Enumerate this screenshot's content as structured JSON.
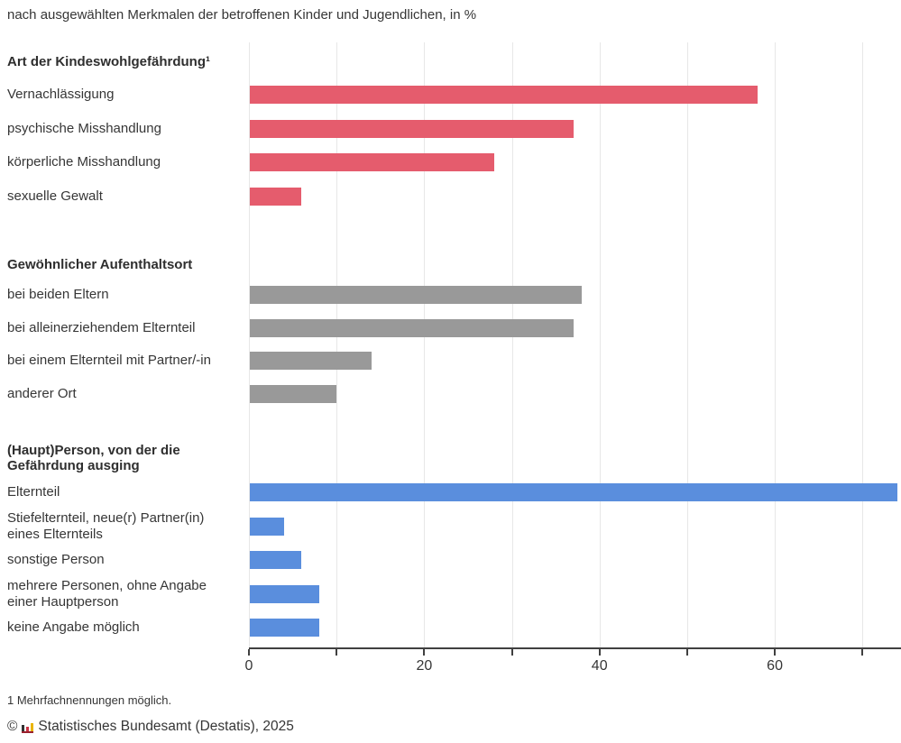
{
  "page": {
    "subtitle": "nach ausgewählten Merkmalen der betroffenen Kinder und Jugendlichen, in %",
    "footnote": "1 Mehrfachnennungen möglich.",
    "copyright_symbol": "©",
    "copyright_text": "Statistisches Bundesamt (Destatis), 2025",
    "logo": {
      "name": "destatis-bars-logo",
      "bar_colors": [
        "#333333",
        "#cc3344",
        "#e9b400"
      ],
      "bar_heights": [
        7,
        5,
        9
      ],
      "base_color": "#99202e"
    }
  },
  "chart_data": {
    "type": "bar",
    "orientation": "horizontal",
    "value_unit": "%",
    "title": "",
    "subtitle": "nach ausgewählten Merkmalen der betroffenen Kinder und Jugendlichen, in %",
    "axis": {
      "min": 0,
      "max": 74.4,
      "tick_step": 10,
      "last_tick": 70,
      "labeled_ticks": [
        0,
        20,
        40,
        60
      ],
      "gridlines": true,
      "gridline_color": "#e7e7e7"
    },
    "sections": [
      {
        "header_lines": [
          "Art der Kindeswohlgefährdung¹"
        ],
        "color": "#e55c6d",
        "rows": [
          {
            "label_lines": [
              "Vernachlässigung"
            ],
            "value": 58
          },
          {
            "label_lines": [
              "psychische Misshandlung"
            ],
            "value": 37
          },
          {
            "label_lines": [
              "körperliche Misshandlung"
            ],
            "value": 28
          },
          {
            "label_lines": [
              "sexuelle Gewalt"
            ],
            "value": 6
          }
        ]
      },
      {
        "header_lines": [
          "Gewöhnlicher Aufenthaltsort"
        ],
        "color": "#999999",
        "rows": [
          {
            "label_lines": [
              "bei beiden Eltern"
            ],
            "value": 38
          },
          {
            "label_lines": [
              "bei alleinerziehendem Elternteil"
            ],
            "value": 37
          },
          {
            "label_lines": [
              "bei einem Elternteil mit Partner/-in"
            ],
            "value": 14
          },
          {
            "label_lines": [
              "anderer Ort"
            ],
            "value": 10
          }
        ]
      },
      {
        "header_lines": [
          "(Haupt)Person, von der die",
          "Gefährdung ausging"
        ],
        "color": "#5a8edd",
        "rows": [
          {
            "label_lines": [
              "Elternteil"
            ],
            "value": 74
          },
          {
            "label_lines": [
              "Stiefelternteil, neue(r) Partner(in)",
              "eines Elternteils"
            ],
            "value": 4
          },
          {
            "label_lines": [
              "sonstige Person"
            ],
            "value": 6
          },
          {
            "label_lines": [
              "mehrere Personen, ohne Angabe",
              "einer Hauptperson"
            ],
            "value": 8
          },
          {
            "label_lines": [
              "keine Angabe möglich"
            ],
            "value": 8
          }
        ]
      }
    ]
  }
}
